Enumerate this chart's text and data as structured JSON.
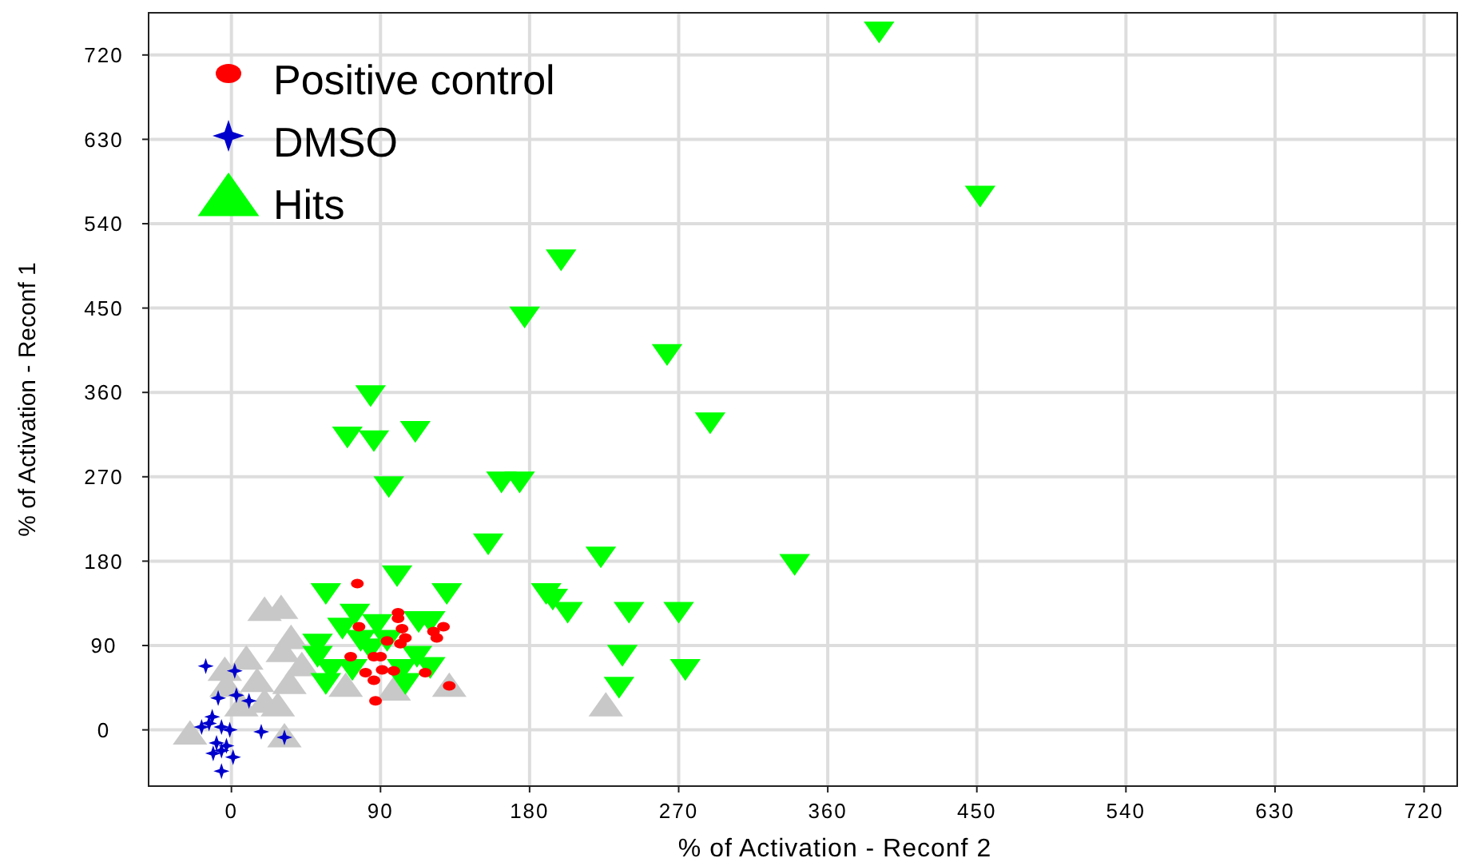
{
  "chart_data": {
    "type": "scatter",
    "xlabel": "% of Activation - Reconf 2",
    "ylabel": "% of Activation - Reconf 1",
    "xlim": [
      -50,
      740
    ],
    "ylim": [
      -60,
      765
    ],
    "xticks": [
      0,
      90,
      180,
      270,
      360,
      450,
      540,
      630,
      720
    ],
    "yticks": [
      0,
      90,
      180,
      270,
      360,
      450,
      540,
      630,
      720
    ],
    "grid": true,
    "legend": "top left",
    "series": [
      {
        "name": "Positive control",
        "color": "#ff0000",
        "marker": "circle",
        "x": [
          76,
          100.6,
          100.6,
          77,
          103,
          128,
          122,
          124,
          105,
          94,
          102,
          72,
          86,
          90,
          81,
          91,
          98,
          117,
          86,
          131.5,
          87
        ],
        "values": [
          156,
          125,
          119,
          110,
          108,
          110,
          105,
          98,
          98,
          95,
          92,
          78,
          78,
          78,
          61,
          64,
          63,
          61,
          53,
          47,
          31
        ]
      },
      {
        "name": "DMSO",
        "color": "#0000cc",
        "marker": "star",
        "x": [
          -15.5,
          2,
          -8,
          3,
          10.6,
          -11.6,
          -18,
          -13.5,
          -6,
          -1,
          18,
          32,
          -9,
          -3,
          -6,
          1,
          -6,
          -11
        ],
        "values": [
          68,
          63,
          34,
          37,
          31,
          14,
          3,
          7,
          3,
          0,
          -2,
          -8,
          -14,
          -17,
          -22,
          -29,
          -44,
          -25
        ]
      },
      {
        "name": "Hits",
        "color": "#00ff00",
        "marker": "triangle-down",
        "x": [
          391,
          452,
          199,
          177,
          263,
          289,
          84,
          70,
          86,
          111,
          95,
          163,
          174,
          155,
          223,
          340,
          190,
          194,
          203,
          240,
          270,
          236,
          274,
          234,
          100,
          130,
          57,
          74.5,
          88,
          67,
          113,
          120,
          52,
          78,
          94,
          112,
          52,
          60,
          73,
          103,
          120,
          57,
          105,
          84
        ],
        "values": [
          746,
          571,
          503,
          442,
          402,
          329,
          358,
          314,
          310,
          320,
          261,
          266,
          266,
          200,
          186,
          178,
          147,
          141,
          127,
          127,
          127,
          81,
          66,
          47,
          166,
          147,
          147,
          125,
          114,
          110,
          117,
          117,
          93,
          97,
          97,
          80,
          80,
          66,
          66,
          66,
          68,
          51,
          51,
          88
        ]
      },
      {
        "color": "#c8c8c8",
        "marker": "triangle",
        "x": [
          20,
          30,
          36,
          31,
          9,
          -4,
          -3,
          35,
          42.5,
          6,
          28,
          -25,
          32,
          69,
          98,
          131.5,
          226,
          15.5,
          20
        ],
        "values": [
          127,
          129,
          97,
          83,
          75,
          63,
          46,
          49,
          68,
          25,
          25,
          -5,
          -8,
          46,
          42,
          46,
          25,
          51,
          29
        ]
      }
    ]
  }
}
